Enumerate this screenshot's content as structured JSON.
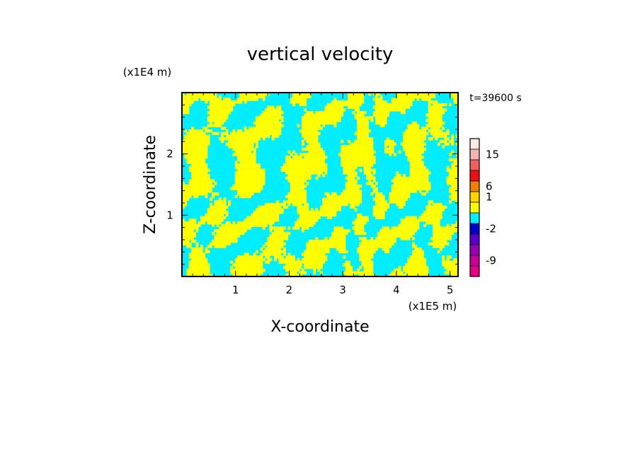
{
  "chart_data": {
    "type": "heatmap",
    "title": "vertical velocity",
    "xlabel": "X-coordinate",
    "ylabel": "Z-coordinate",
    "x_unit": "(x1E5 m)",
    "y_unit": "(x1E4 m)",
    "time_label": "t=39600 s",
    "xlim": [
      0,
      5.15
    ],
    "ylim": [
      0,
      3.0
    ],
    "x_ticks": [
      1,
      2,
      3,
      4,
      5
    ],
    "y_ticks": [
      1,
      2
    ],
    "x_tick_labels": [
      "1",
      "2",
      "3",
      "4",
      "5"
    ],
    "y_tick_labels": [
      "1",
      "2"
    ],
    "dominant_fill": {
      "positive": "#ffff00",
      "negative": "#00eeff"
    },
    "colorbar": {
      "colors": [
        "#e6007f",
        "#c8009a",
        "#9a00b4",
        "#5a00cc",
        "#0000cc",
        "#00eeff",
        "#ffff00",
        "#ffd400",
        "#f08000",
        "#ee1010",
        "#f06060",
        "#f4b4b4",
        "#fce8e4"
      ],
      "tick_labels": [
        "-9",
        "-2",
        "1",
        "6",
        "15"
      ]
    },
    "grid": false,
    "legend": "right"
  }
}
